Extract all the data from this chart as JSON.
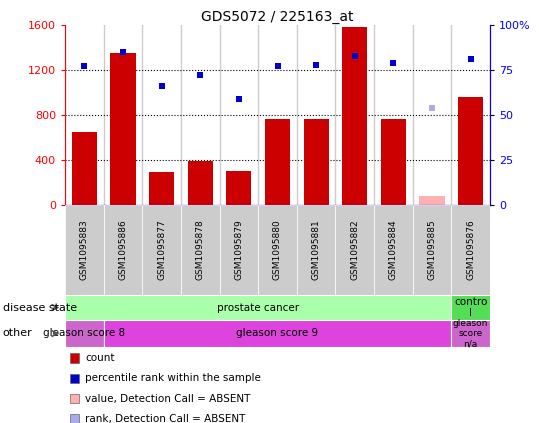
{
  "title": "GDS5072 / 225163_at",
  "samples": [
    "GSM1095883",
    "GSM1095886",
    "GSM1095877",
    "GSM1095878",
    "GSM1095879",
    "GSM1095880",
    "GSM1095881",
    "GSM1095882",
    "GSM1095884",
    "GSM1095885",
    "GSM1095876"
  ],
  "bar_values": [
    650,
    1350,
    290,
    390,
    300,
    760,
    760,
    1580,
    760,
    80,
    960
  ],
  "bar_absent": [
    false,
    false,
    false,
    false,
    false,
    false,
    false,
    false,
    false,
    true,
    false
  ],
  "dot_values_pct": [
    77,
    85,
    66,
    72,
    59,
    77,
    78,
    83,
    79,
    54,
    81
  ],
  "dot_absent": [
    false,
    false,
    false,
    false,
    false,
    false,
    false,
    false,
    false,
    true,
    false
  ],
  "ylim_left": [
    0,
    1600
  ],
  "ylim_right": [
    0,
    100
  ],
  "yticks_left": [
    0,
    400,
    800,
    1200,
    1600
  ],
  "yticks_right": [
    0,
    25,
    50,
    75,
    100
  ],
  "bar_color": "#cc0000",
  "bar_absent_color": "#ffb0b0",
  "dot_color": "#0000cc",
  "dot_absent_color": "#aaaaee",
  "disease_state_groups": [
    {
      "label": "prostate cancer",
      "start": 0,
      "end": 9,
      "color": "#aaffaa"
    },
    {
      "label": "contro\nl",
      "start": 10,
      "end": 10,
      "color": "#55dd55"
    }
  ],
  "other_groups": [
    {
      "label": "gleason score 8",
      "start": 0,
      "end": 0,
      "color": "#cc66cc"
    },
    {
      "label": "gleason score 9",
      "start": 1,
      "end": 9,
      "color": "#dd44dd"
    },
    {
      "label": "gleason\nscore\nn/a",
      "start": 10,
      "end": 10,
      "color": "#cc66cc"
    }
  ],
  "row_label_disease": "disease state",
  "row_label_other": "other",
  "legend_items": [
    {
      "label": "count",
      "color": "#cc0000"
    },
    {
      "label": "percentile rank within the sample",
      "color": "#0000cc"
    },
    {
      "label": "value, Detection Call = ABSENT",
      "color": "#ffb0b0"
    },
    {
      "label": "rank, Detection Call = ABSENT",
      "color": "#aaaaee"
    }
  ],
  "bg_color": "#cccccc",
  "plot_bg": "#ffffff",
  "grid_yticks": [
    400,
    800,
    1200
  ]
}
